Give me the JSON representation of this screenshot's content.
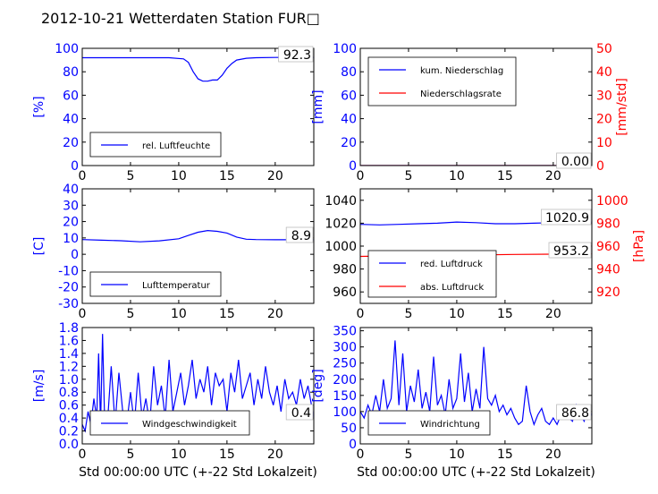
{
  "figure_title": "2012-10-21 Wetterdaten Station FUR□",
  "colors": {
    "blue": "#0000ff",
    "red": "#ff0000",
    "black": "#000000"
  },
  "chart_data": [
    {
      "id": "humidity",
      "type": "line",
      "xlim": [
        0,
        24
      ],
      "xticks": [
        0,
        5,
        10,
        15,
        20
      ],
      "ylim": [
        0,
        100
      ],
      "yticks": [
        0,
        20,
        40,
        60,
        80,
        100
      ],
      "ylabel": "[%]",
      "ylabel_color": "blue",
      "value_label": "92.3",
      "legend": [
        "rel. Luftfeuchte"
      ],
      "series": [
        {
          "name": "rel. Luftfeuchte",
          "color": "blue",
          "x": [
            0,
            5,
            9,
            10.5,
            11,
            11.5,
            12,
            12.5,
            13,
            13.5,
            14,
            14.5,
            15,
            15.5,
            16,
            17,
            18,
            20,
            22,
            24
          ],
          "y": [
            92,
            92,
            92,
            91,
            88,
            80,
            74,
            72,
            72,
            73,
            73,
            77,
            83,
            87,
            90,
            91.5,
            92,
            92.2,
            92.3,
            92.3
          ]
        }
      ]
    },
    {
      "id": "precipitation",
      "type": "line",
      "xlim": [
        0,
        24
      ],
      "xticks": [
        0,
        5,
        10,
        15,
        20
      ],
      "ylim": [
        0,
        100
      ],
      "yticks": [
        0,
        20,
        40,
        60,
        80,
        100
      ],
      "ylabel": "[mm]",
      "ylabel_color": "blue",
      "y2lim": [
        0,
        50
      ],
      "y2ticks": [
        0,
        10,
        20,
        30,
        40,
        50
      ],
      "y2label": "[mm/std]",
      "y2label_color": "red",
      "value_label": "0.00",
      "legend": [
        "kum. Niederschlag",
        "Niederschlagsrate"
      ],
      "series": [
        {
          "name": "kum. Niederschlag",
          "color": "blue",
          "x": [
            0,
            24
          ],
          "y": [
            0,
            0
          ]
        },
        {
          "name": "Niederschlagsrate",
          "color": "red",
          "x": [
            0,
            24
          ],
          "y": [
            0,
            0
          ]
        }
      ]
    },
    {
      "id": "temperature",
      "type": "line",
      "xlim": [
        0,
        24
      ],
      "xticks": [
        0,
        5,
        10,
        15,
        20
      ],
      "ylim": [
        -30,
        40
      ],
      "yticks": [
        -30,
        -20,
        -10,
        0,
        10,
        20,
        30,
        40
      ],
      "ylabel": "[C]",
      "ylabel_color": "blue",
      "value_label": "8.9",
      "legend": [
        "Lufttemperatur"
      ],
      "series": [
        {
          "name": "Lufttemperatur",
          "color": "blue",
          "x": [
            0,
            2,
            4,
            6,
            8,
            10,
            11,
            12,
            13,
            14,
            15,
            16,
            17,
            18,
            20,
            22,
            24
          ],
          "y": [
            9,
            8.6,
            8.3,
            7.6,
            8.2,
            9.5,
            11.5,
            13.5,
            14.5,
            14,
            13,
            10.5,
            9.2,
            9,
            8.9,
            8.9,
            8.9
          ]
        }
      ]
    },
    {
      "id": "pressure",
      "type": "line",
      "xlim": [
        0,
        24
      ],
      "xticks": [
        0,
        5,
        10,
        15,
        20
      ],
      "ylim": [
        950,
        1050
      ],
      "yticks": [
        960,
        980,
        1000,
        1020,
        1040
      ],
      "y2lim": [
        910,
        1010
      ],
      "y2ticks": [
        920,
        940,
        960,
        980,
        1000
      ],
      "y2label": "[hPa]",
      "y2label_color": "red",
      "value_labels": [
        "1020.9",
        "953.2"
      ],
      "legend": [
        "red. Luftdruck",
        "abs. Luftdruck"
      ],
      "series": [
        {
          "name": "red. Luftdruck",
          "color": "blue",
          "x": [
            0,
            2,
            4,
            6,
            8,
            10,
            12,
            14,
            16,
            18,
            20,
            22,
            24
          ],
          "y": [
            1019,
            1018.5,
            1019,
            1019.5,
            1020,
            1021,
            1020.5,
            1019.5,
            1019.5,
            1020,
            1020.5,
            1021,
            1020.9
          ]
        },
        {
          "name": "abs. Luftdruck",
          "color": "red",
          "axis": "y2",
          "x": [
            0,
            4,
            8,
            12,
            16,
            20,
            24
          ],
          "y": [
            951,
            951.5,
            952,
            952.3,
            952.7,
            953,
            953.2
          ]
        }
      ]
    },
    {
      "id": "windspeed",
      "type": "line",
      "xlim": [
        0,
        24
      ],
      "xticks": [
        0,
        5,
        10,
        15,
        20
      ],
      "ylim": [
        0,
        1.8
      ],
      "yticks": [
        0.0,
        0.2,
        0.4,
        0.6,
        0.8,
        1.0,
        1.2,
        1.4,
        1.6,
        1.8
      ],
      "ylabel": "[m/s]",
      "ylabel_color": "blue",
      "value_label": "0.4",
      "xlabel": "Std 00:00:00 UTC (+-22 Std Lokalzeit)",
      "legend": [
        "Windgeschwindigkeit"
      ],
      "series": [
        {
          "name": "Windgeschwindigkeit",
          "color": "blue",
          "x": [
            0,
            0.3,
            0.6,
            0.9,
            1.2,
            1.5,
            1.7,
            1.9,
            2.1,
            2.3,
            2.6,
            3.0,
            3.4,
            3.8,
            4.2,
            4.6,
            5.0,
            5.4,
            5.8,
            6.2,
            6.6,
            7.0,
            7.4,
            7.8,
            8.2,
            8.6,
            9.0,
            9.4,
            9.8,
            10.2,
            10.6,
            11.0,
            11.4,
            11.8,
            12.2,
            12.6,
            13.0,
            13.4,
            13.8,
            14.2,
            14.6,
            15.0,
            15.4,
            15.8,
            16.2,
            16.6,
            17.0,
            17.4,
            17.8,
            18.2,
            18.6,
            19.0,
            19.4,
            19.8,
            20.2,
            20.6,
            21.0,
            21.4,
            21.8,
            22.2,
            22.6,
            23.0,
            23.4,
            24.0
          ],
          "y": [
            0.3,
            0.2,
            0.5,
            0.3,
            0.7,
            0.4,
            1.4,
            0.3,
            1.7,
            0.5,
            0.3,
            1.2,
            0.3,
            1.1,
            0.5,
            0.3,
            0.8,
            0.3,
            1.1,
            0.4,
            0.7,
            0.3,
            1.2,
            0.6,
            0.9,
            0.4,
            1.3,
            0.5,
            0.8,
            1.1,
            0.6,
            0.9,
            1.3,
            0.7,
            1.0,
            0.8,
            1.2,
            0.6,
            1.1,
            0.9,
            1.0,
            0.5,
            1.1,
            0.8,
            1.3,
            0.7,
            0.9,
            1.1,
            0.6,
            1.0,
            0.7,
            1.2,
            0.8,
            0.6,
            0.9,
            0.5,
            1.0,
            0.7,
            0.8,
            0.6,
            1.0,
            0.7,
            0.9,
            0.4
          ]
        }
      ]
    },
    {
      "id": "winddirection",
      "type": "line",
      "xlim": [
        0,
        24
      ],
      "xticks": [
        0,
        5,
        10,
        15,
        20
      ],
      "ylim": [
        0,
        360
      ],
      "yticks": [
        0,
        50,
        100,
        150,
        200,
        250,
        300,
        350
      ],
      "ylabel": "[deg]",
      "ylabel_color": "blue",
      "value_label": "86.8",
      "xlabel": "Std 00:00:00 UTC (+-22 Std Lokalzeit)",
      "legend": [
        "Windrichtung"
      ],
      "series": [
        {
          "name": "Windrichtung",
          "color": "blue",
          "x": [
            0,
            0.4,
            0.8,
            1.2,
            1.6,
            2.0,
            2.4,
            2.8,
            3.2,
            3.6,
            4.0,
            4.4,
            4.8,
            5.2,
            5.6,
            6.0,
            6.4,
            6.8,
            7.2,
            7.6,
            8.0,
            8.4,
            8.8,
            9.2,
            9.6,
            10.0,
            10.4,
            10.8,
            11.2,
            11.6,
            12.0,
            12.4,
            12.8,
            13.2,
            13.6,
            14.0,
            14.4,
            14.8,
            15.2,
            15.6,
            16.0,
            16.4,
            16.8,
            17.2,
            17.6,
            18.0,
            18.4,
            18.8,
            19.2,
            19.6,
            20.0,
            20.4,
            20.8,
            21.2,
            21.6,
            22.0,
            22.4,
            22.8,
            23.2,
            23.6,
            24.0
          ],
          "y": [
            100,
            80,
            120,
            90,
            150,
            100,
            200,
            110,
            140,
            320,
            120,
            280,
            100,
            180,
            130,
            230,
            110,
            160,
            100,
            270,
            120,
            150,
            90,
            200,
            110,
            140,
            280,
            130,
            220,
            100,
            170,
            110,
            300,
            140,
            120,
            150,
            100,
            120,
            90,
            110,
            80,
            60,
            70,
            180,
            100,
            60,
            90,
            110,
            70,
            60,
            80,
            60,
            90,
            110,
            80,
            70,
            120,
            90,
            70,
            110,
            87
          ]
        }
      ]
    }
  ]
}
